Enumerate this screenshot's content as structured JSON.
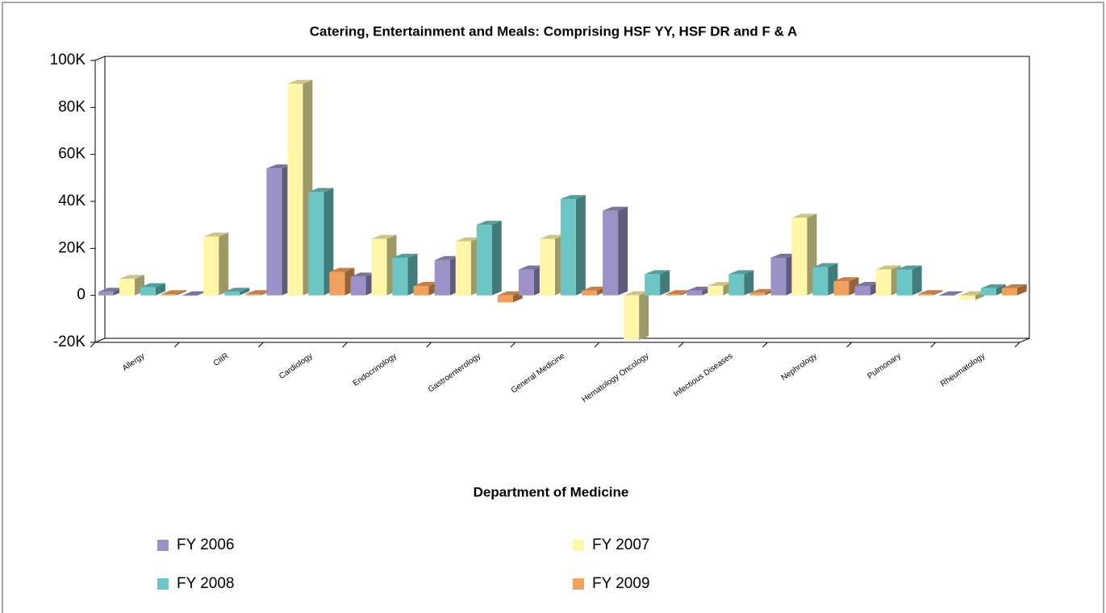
{
  "chart_data": {
    "type": "bar",
    "title": "Catering, Entertainment and Meals: Comprising HSF YY, HSF DR and F & A",
    "x_label": "Department of Medicine",
    "categories": [
      "Allergy",
      "CIIR",
      "Cardiology",
      "Endocrinology",
      "Gastroenterology",
      "General Medicine",
      "Hematology Oncology",
      "Infectious Diseases",
      "Nephrology",
      "Pulmonary",
      "Rheumatology"
    ],
    "series": [
      {
        "name": "FY 2006",
        "color": "#9d92c7",
        "values": [
          1500,
          0,
          54000,
          8000,
          15000,
          11000,
          36000,
          2000,
          16000,
          4000,
          0
        ]
      },
      {
        "name": "FY 2007",
        "color": "#fff6a8",
        "values": [
          7000,
          25000,
          90000,
          24000,
          23000,
          24000,
          -19000,
          4000,
          33000,
          11000,
          -2000
        ]
      },
      {
        "name": "FY 2008",
        "color": "#6cc6c6",
        "values": [
          3500,
          1500,
          44000,
          16000,
          30000,
          41000,
          9000,
          9000,
          12000,
          11000,
          3000
        ]
      },
      {
        "name": "FY 2009",
        "color": "#f2a05e",
        "values": [
          500,
          500,
          10000,
          4000,
          -3000,
          2000,
          500,
          1000,
          6000,
          500,
          3000
        ]
      }
    ],
    "ylim": [
      -20000,
      100000
    ],
    "yticks": [
      {
        "value": -20000,
        "label": "-20K"
      },
      0,
      {
        "value": 20000,
        "label": "20K"
      },
      {
        "value": 40000,
        "label": "40K"
      },
      {
        "value": 60000,
        "label": "60K"
      },
      {
        "value": 80000,
        "label": "80K"
      },
      {
        "value": 100000,
        "label": "100K"
      }
    ],
    "grid": false,
    "legend": "bottom"
  }
}
